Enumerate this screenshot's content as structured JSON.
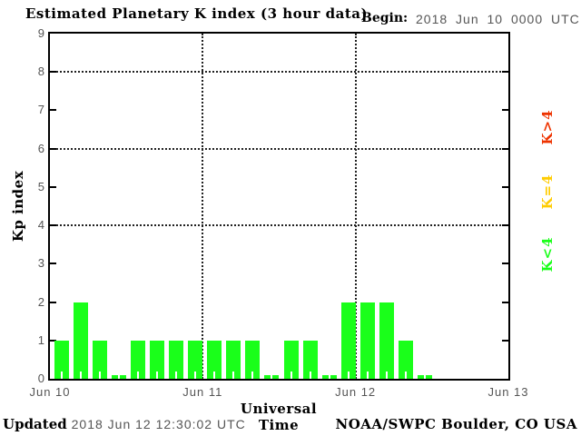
{
  "title": "Estimated Planetary K index (3 hour data)",
  "begin": {
    "label": "Begin:",
    "value": "2018 Jun 10 0000 UTC"
  },
  "footer": {
    "updated_label": "Updated",
    "updated_value": "2018 Jun 12 12:30:02 UTC",
    "source": "NOAA/SWPC Boulder, CO USA"
  },
  "chart_data": {
    "type": "bar",
    "title": "Estimated Planetary K index (3 hour data)",
    "xlabel": "Universal Time",
    "ylabel": "Kp index",
    "ylim": [
      0,
      9
    ],
    "yticks": [
      0,
      1,
      2,
      3,
      4,
      5,
      6,
      7,
      8,
      9
    ],
    "x_day_labels": [
      "Jun 10",
      "Jun 11",
      "Jun 12",
      "Jun 13"
    ],
    "begin": "2018 Jun 10 0000 UTC",
    "interval_hours": 3,
    "values": [
      1,
      2,
      1,
      0,
      1,
      1,
      1,
      1,
      1,
      1,
      1,
      0,
      1,
      1,
      0,
      2,
      2,
      2,
      1,
      0
    ],
    "bar_color": "#1aff1a",
    "h_gridlines_at": [
      4,
      6,
      8
    ],
    "v_gridlines_at_day": [
      1,
      2
    ],
    "grid_style": "dotted",
    "legend_position": "right",
    "legend": [
      {
        "label": "K>4",
        "color": "#ee3300"
      },
      {
        "label": "K=4",
        "color": "#ffcc00"
      },
      {
        "label": "K<4",
        "color": "#1aff1a"
      }
    ]
  }
}
